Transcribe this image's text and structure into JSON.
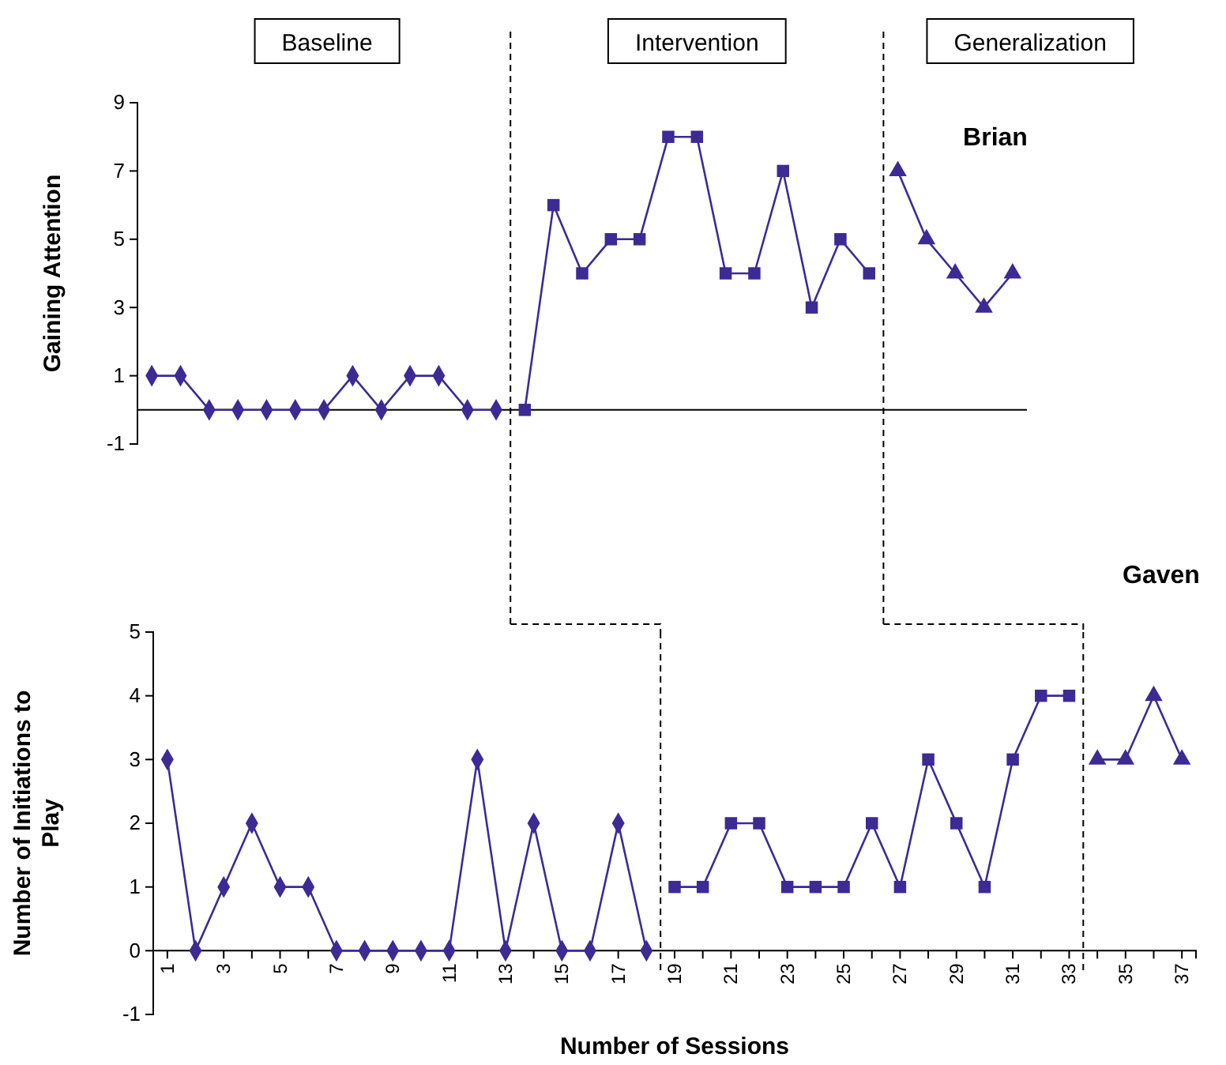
{
  "chart_data": [
    {
      "type": "line",
      "title": "Brian",
      "ylabel": "Gaining Attention",
      "annotations": [
        "Baseline",
        "Intervention",
        "Generalization"
      ],
      "categories": [
        null,
        null,
        null,
        null,
        null,
        null,
        null,
        null,
        null,
        null,
        null,
        null,
        null,
        null,
        null,
        null,
        null,
        null,
        null,
        null,
        null,
        null,
        null,
        null,
        null,
        null,
        null,
        null,
        null,
        null,
        null
      ],
      "ylim": [
        -1,
        9
      ],
      "yticks": [
        -1,
        1,
        3,
        5,
        7,
        9
      ],
      "tick_labels": "y",
      "series": [
        {
          "color": "#3d2a94",
          "marker": "diamond",
          "values": [
            1,
            1,
            0,
            0,
            0,
            0,
            0,
            1,
            0,
            1,
            1,
            0,
            0,
            null,
            null,
            null,
            null,
            null,
            null,
            null,
            null,
            null,
            null,
            null,
            null,
            null,
            null,
            null,
            null,
            null,
            null
          ]
        },
        {
          "color": "#3d2a94",
          "marker": "square",
          "values": [
            null,
            null,
            null,
            null,
            null,
            null,
            null,
            null,
            null,
            null,
            null,
            null,
            null,
            0,
            6,
            4,
            5,
            5,
            8,
            8,
            4,
            4,
            7,
            3,
            5,
            4,
            null,
            null,
            null,
            null,
            null
          ]
        },
        {
          "color": "#3d2a94",
          "marker": "triangle",
          "values": [
            null,
            null,
            null,
            null,
            null,
            null,
            null,
            null,
            null,
            null,
            null,
            null,
            null,
            null,
            null,
            null,
            null,
            null,
            null,
            null,
            null,
            null,
            null,
            null,
            null,
            null,
            7,
            5,
            4,
            3,
            4
          ]
        }
      ]
    },
    {
      "type": "line",
      "title": "Gaven",
      "ylabel": "Number of Initiations to Play",
      "xlabel": "Number of Sessions",
      "xlim": [
        0.5,
        37.5
      ],
      "ylim": [
        -1,
        5
      ],
      "yticks": [
        -1,
        0,
        1,
        2,
        3,
        4,
        5
      ],
      "xticks": [
        1,
        {
          "value": 2,
          "label": null
        },
        3,
        {
          "value": 4,
          "label": null
        },
        5,
        {
          "value": 6,
          "label": null
        },
        7,
        {
          "value": 8,
          "label": null
        },
        9,
        {
          "value": 10,
          "label": null
        },
        11,
        {
          "value": 12,
          "label": null
        },
        13,
        {
          "value": 14,
          "label": null
        },
        15,
        {
          "value": 16,
          "label": null
        },
        17,
        {
          "value": 18,
          "label": null
        },
        19,
        {
          "value": 20,
          "label": null
        },
        21,
        {
          "value": 22,
          "label": null
        },
        23,
        {
          "value": 24,
          "label": null
        },
        25,
        {
          "value": 26,
          "label": null
        },
        27,
        {
          "value": 28,
          "label": null
        },
        29,
        {
          "value": 30,
          "label": null
        },
        31,
        {
          "value": 32,
          "label": null
        },
        33,
        {
          "value": 34,
          "label": null
        },
        35,
        {
          "value": 36,
          "label": null
        },
        37
      ],
      "ref_lines": [
        {
          "axis": "x",
          "value": 18.5,
          "line_style": "dashed",
          "color": "#000000"
        },
        {
          "axis": "x",
          "value": 33.5,
          "line_style": "dashed",
          "color": "#000000"
        }
      ],
      "series": [
        {
          "color": "#3d2a94",
          "marker": "diamond",
          "x": [
            1,
            2,
            3,
            4,
            5,
            6,
            7,
            8,
            9,
            10,
            11,
            12,
            13,
            14,
            15,
            16,
            17,
            18
          ],
          "values": [
            3,
            0,
            1,
            2,
            1,
            1,
            0,
            0,
            0,
            0,
            0,
            3,
            0,
            2,
            0,
            0,
            2,
            0
          ]
        },
        {
          "color": "#3d2a94",
          "marker": "square",
          "x": [
            19,
            20,
            21,
            22,
            23,
            24,
            25,
            26,
            27,
            28,
            29,
            30,
            31,
            32,
            33
          ],
          "values": [
            1,
            1,
            2,
            2,
            1,
            1,
            1,
            2,
            1,
            3,
            2,
            1,
            3,
            4,
            4
          ]
        },
        {
          "color": "#3d2a94",
          "marker": "triangle",
          "x": [
            34,
            35,
            36,
            37
          ],
          "values": [
            3,
            3,
            4,
            3
          ]
        }
      ]
    }
  ]
}
